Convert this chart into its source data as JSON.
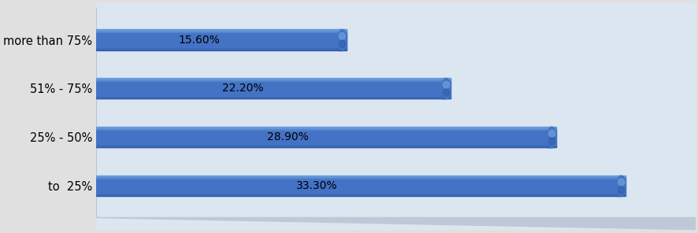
{
  "categories": [
    "more than 75%",
    "51% - 75%",
    "25% - 50%",
    "to  25%"
  ],
  "values": [
    15.6,
    22.2,
    28.9,
    33.3
  ],
  "labels": [
    "15.60%",
    "22.20%",
    "28.90%",
    "33.30%"
  ],
  "bar_color_main": "#4472C4",
  "bar_color_light": "#6CA0DC",
  "bar_color_dark": "#2E5EA8",
  "bar_color_shadow": "#354F7A",
  "background_color": "#DCE6F1",
  "plot_bg_color": "#E8EEF7",
  "wall_color": "#B8C4D8",
  "shadow_color": "#AAAAAA",
  "xlim": [
    0,
    38
  ],
  "bar_height": 0.42,
  "label_fontsize": 10,
  "ytick_fontsize": 10.5
}
